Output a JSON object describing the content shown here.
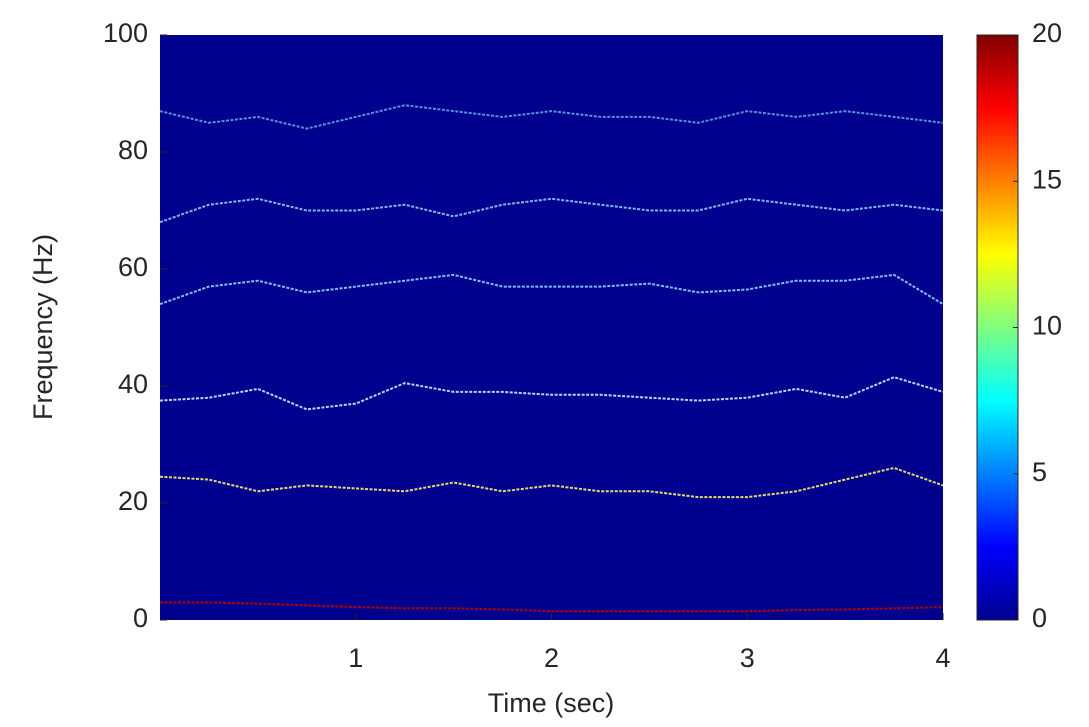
{
  "chart_data": {
    "type": "spectrogram",
    "xlabel": "Time (sec)",
    "ylabel": "Frequency (Hz)",
    "xlim": [
      0,
      4
    ],
    "xticks": [
      1,
      2,
      3,
      4
    ],
    "ylim": [
      0,
      100
    ],
    "yticks": [
      0,
      20,
      40,
      60,
      80,
      100
    ],
    "background": "#00008f",
    "colormap": "jet",
    "clim": [
      0,
      20
    ],
    "cticks": [
      0,
      5,
      10,
      15,
      20
    ],
    "x": [
      0,
      0.25,
      0.5,
      0.75,
      1,
      1.25,
      1.5,
      1.75,
      2,
      2.25,
      2.5,
      2.75,
      3,
      3.25,
      3.5,
      3.75,
      4
    ],
    "series": [
      {
        "color": "#b00000",
        "values": [
          3,
          3,
          2.8,
          2.5,
          2.2,
          2,
          2,
          1.8,
          1.5,
          1.5,
          1.5,
          1.5,
          1.5,
          1.7,
          1.8,
          2,
          2.2
        ]
      },
      {
        "color": "#e8d870",
        "values": [
          24.5,
          24,
          22,
          23,
          22.5,
          22,
          23.5,
          22,
          23,
          22,
          22,
          21,
          21,
          22,
          24,
          26,
          23
        ]
      },
      {
        "color": "#b8d8f0",
        "values": [
          37.5,
          38,
          39.5,
          36,
          37,
          40.5,
          39,
          39,
          38.5,
          38.5,
          38,
          37.5,
          38,
          39.5,
          38,
          41.5,
          39
        ]
      },
      {
        "color": "#80c0f0",
        "values": [
          54,
          57,
          58,
          56,
          57,
          58,
          59,
          57,
          57,
          57,
          57.5,
          56,
          56.5,
          58,
          58,
          59,
          54
        ]
      },
      {
        "color": "#80b8e8",
        "values": [
          68,
          71,
          72,
          70,
          70,
          71,
          69,
          71,
          72,
          71,
          70,
          70,
          72,
          71,
          70,
          71,
          70
        ]
      },
      {
        "color": "#5a90d8",
        "values": [
          87,
          85,
          86,
          84,
          86,
          88,
          87,
          86,
          87,
          86,
          86,
          85,
          87,
          86,
          87,
          86,
          85
        ]
      }
    ]
  }
}
